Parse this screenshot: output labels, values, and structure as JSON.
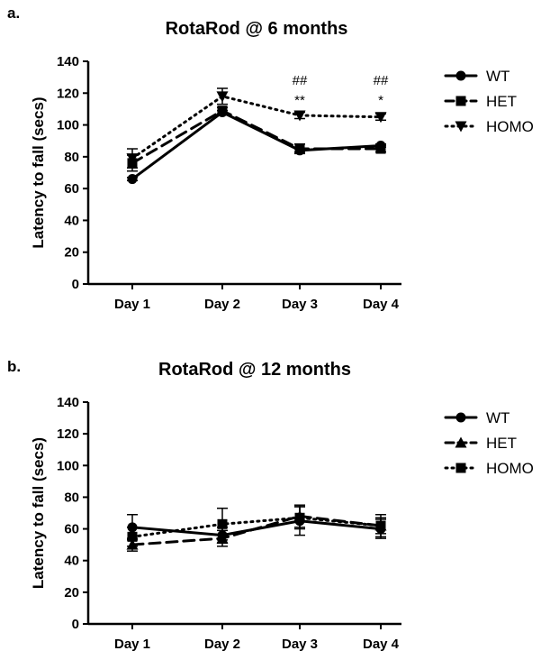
{
  "chart_data": [
    {
      "type": "line",
      "panel_label": "a.",
      "title": "RotaRod @ 6 months",
      "ylabel": "Latency to fall (secs)",
      "xlabel": "",
      "ylim": [
        0,
        140
      ],
      "yticks": [
        0,
        20,
        40,
        60,
        80,
        100,
        120,
        140
      ],
      "categories": [
        "Day 1",
        "Day 2",
        "Day 3",
        "Day 4"
      ],
      "legend_position": "right",
      "grid": false,
      "series": [
        {
          "name": "WT",
          "marker": "circle",
          "line": "solid",
          "values": [
            66,
            108,
            84,
            87
          ],
          "errors": [
            1,
            1,
            1,
            1
          ]
        },
        {
          "name": "HET",
          "marker": "square",
          "line": "dashed",
          "values": [
            76,
            109,
            85,
            85
          ],
          "errors": [
            5,
            2,
            3,
            2
          ]
        },
        {
          "name": "HOMO",
          "marker": "triangle-down",
          "line": "dotted",
          "values": [
            79,
            118,
            106,
            105
          ],
          "errors": [
            6,
            5,
            2,
            2
          ]
        }
      ],
      "annotations": [
        {
          "category_index": 2,
          "top": "##",
          "bottom": "**"
        },
        {
          "category_index": 3,
          "top": "##",
          "bottom": "*"
        }
      ]
    },
    {
      "type": "line",
      "panel_label": "b.",
      "title": "RotaRod @ 12 months",
      "ylabel": "Latency to  fall (secs)",
      "xlabel": "",
      "ylim": [
        0,
        140
      ],
      "yticks": [
        0,
        20,
        40,
        60,
        80,
        100,
        120,
        140
      ],
      "categories": [
        "Day 1",
        "Day 2",
        "Day 3",
        "Day 4"
      ],
      "legend_position": "right",
      "grid": false,
      "series": [
        {
          "name": "WT",
          "marker": "circle",
          "line": "solid",
          "values": [
            61,
            56,
            65,
            60
          ],
          "errors": [
            8,
            5,
            9,
            6
          ]
        },
        {
          "name": "HET",
          "marker": "triangle-up",
          "line": "dashed",
          "values": [
            50,
            54,
            68,
            62
          ],
          "errors": [
            4,
            5,
            7,
            5
          ]
        },
        {
          "name": "HOMO",
          "marker": "square",
          "line": "dotted",
          "values": [
            55,
            63,
            67,
            62
          ],
          "errors": [
            6,
            10,
            7,
            7
          ]
        }
      ],
      "annotations": []
    }
  ]
}
